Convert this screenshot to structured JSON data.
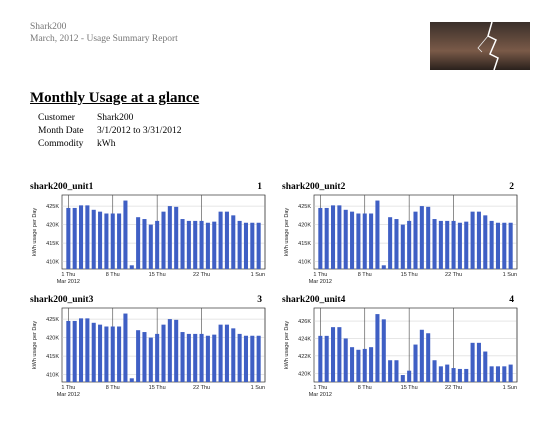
{
  "header": {
    "company": "Shark200",
    "subtitle": "March, 2012 - Usage Summary Report",
    "title": "Monthly Usage at a glance"
  },
  "summary": {
    "rows": [
      {
        "label": "Customer",
        "value": "Shark200"
      },
      {
        "label": "Month Date",
        "value": "3/1/2012 to 3/31/2012"
      },
      {
        "label": "Commodity",
        "value": "kWh"
      }
    ]
  },
  "chart_data": [
    {
      "type": "bar",
      "title": "shark200_unit1",
      "panel": 1,
      "ylabel": "kWh usage per Day",
      "color": "#3f5fc4",
      "grid": true,
      "x": [
        1,
        2,
        3,
        4,
        5,
        6,
        7,
        8,
        9,
        10,
        11,
        12,
        13,
        14,
        15,
        16,
        17,
        18,
        19,
        20,
        21,
        22,
        23,
        24,
        25,
        26,
        27,
        28,
        29,
        30,
        31
      ],
      "values": [
        424500,
        424500,
        425200,
        425200,
        424000,
        423500,
        423000,
        423000,
        423000,
        426500,
        409000,
        422000,
        421500,
        420000,
        421000,
        423500,
        425000,
        424800,
        421500,
        421000,
        421000,
        421000,
        420500,
        420800,
        423500,
        423500,
        422500,
        421000,
        420500,
        420500,
        420500
      ],
      "xlim": [
        0,
        32
      ],
      "xticks": [
        {
          "value": 1,
          "label": "1 Thu"
        },
        {
          "value": 8,
          "label": "8 Thu"
        },
        {
          "value": 15,
          "label": "15 Thu"
        },
        {
          "value": 22,
          "label": "22 Thu"
        },
        {
          "value": 32,
          "label": "1 Sun"
        }
      ],
      "x_sublabel": "Mar 2012",
      "ylim": [
        408000,
        428000
      ],
      "yticks": [
        {
          "value": 410000,
          "label": "410K"
        },
        {
          "value": 415000,
          "label": "415K"
        },
        {
          "value": 420000,
          "label": "420K"
        },
        {
          "value": 425000,
          "label": "425K"
        }
      ]
    },
    {
      "type": "bar",
      "title": "shark200_unit2",
      "panel": 2,
      "ylabel": "kWh usage per Day",
      "color": "#3f5fc4",
      "grid": true,
      "x": [
        1,
        2,
        3,
        4,
        5,
        6,
        7,
        8,
        9,
        10,
        11,
        12,
        13,
        14,
        15,
        16,
        17,
        18,
        19,
        20,
        21,
        22,
        23,
        24,
        25,
        26,
        27,
        28,
        29,
        30,
        31
      ],
      "values": [
        424500,
        424500,
        425200,
        425200,
        424000,
        423500,
        423000,
        423000,
        423000,
        426500,
        409000,
        422000,
        421500,
        420000,
        421000,
        423500,
        425000,
        424800,
        421500,
        421000,
        421000,
        421000,
        420500,
        420800,
        423500,
        423500,
        422500,
        421000,
        420500,
        420500,
        420500
      ],
      "xlim": [
        0,
        32
      ],
      "xticks": [
        {
          "value": 1,
          "label": "1 Thu"
        },
        {
          "value": 8,
          "label": "8 Thu"
        },
        {
          "value": 15,
          "label": "15 Thu"
        },
        {
          "value": 22,
          "label": "22 Thu"
        },
        {
          "value": 32,
          "label": "1 Sun"
        }
      ],
      "x_sublabel": "Mar 2012",
      "ylim": [
        408000,
        428000
      ],
      "yticks": [
        {
          "value": 410000,
          "label": "410K"
        },
        {
          "value": 415000,
          "label": "415K"
        },
        {
          "value": 420000,
          "label": "420K"
        },
        {
          "value": 425000,
          "label": "425K"
        }
      ]
    },
    {
      "type": "bar",
      "title": "shark200_unit3",
      "panel": 3,
      "ylabel": "kWh usage per Day",
      "color": "#3f5fc4",
      "grid": true,
      "x": [
        1,
        2,
        3,
        4,
        5,
        6,
        7,
        8,
        9,
        10,
        11,
        12,
        13,
        14,
        15,
        16,
        17,
        18,
        19,
        20,
        21,
        22,
        23,
        24,
        25,
        26,
        27,
        28,
        29,
        30,
        31
      ],
      "values": [
        424500,
        424500,
        425200,
        425200,
        424000,
        423500,
        423000,
        423000,
        423000,
        426500,
        409000,
        422000,
        421500,
        420000,
        421000,
        423500,
        425000,
        424800,
        421500,
        421000,
        421000,
        421000,
        420500,
        420800,
        423500,
        423500,
        422500,
        421000,
        420500,
        420500,
        420500
      ],
      "xlim": [
        0,
        32
      ],
      "xticks": [
        {
          "value": 1,
          "label": "1 Thu"
        },
        {
          "value": 8,
          "label": "8 Thu"
        },
        {
          "value": 15,
          "label": "15 Thu"
        },
        {
          "value": 22,
          "label": "22 Thu"
        },
        {
          "value": 32,
          "label": "1 Sun"
        }
      ],
      "x_sublabel": "Mar 2012",
      "ylim": [
        408000,
        428000
      ],
      "yticks": [
        {
          "value": 410000,
          "label": "410K"
        },
        {
          "value": 415000,
          "label": "415K"
        },
        {
          "value": 420000,
          "label": "420K"
        },
        {
          "value": 425000,
          "label": "425K"
        }
      ]
    },
    {
      "type": "bar",
      "title": "shark200_unit4",
      "panel": 4,
      "ylabel": "kWh usage per Day",
      "color": "#3f5fc4",
      "grid": true,
      "x": [
        1,
        2,
        3,
        4,
        5,
        6,
        7,
        8,
        9,
        10,
        11,
        12,
        13,
        14,
        15,
        16,
        17,
        18,
        19,
        20,
        21,
        22,
        23,
        24,
        25,
        26,
        27,
        28,
        29,
        30,
        31
      ],
      "values": [
        424300,
        424300,
        425300,
        425300,
        424000,
        423000,
        422700,
        422800,
        423000,
        426800,
        426200,
        421500,
        421500,
        419800,
        420300,
        423300,
        425000,
        424600,
        421500,
        420800,
        421000,
        420600,
        420500,
        420500,
        423500,
        423500,
        422500,
        420800,
        420800,
        420800,
        421000
      ],
      "xlim": [
        0,
        32
      ],
      "xticks": [
        {
          "value": 1,
          "label": "1 Thu"
        },
        {
          "value": 8,
          "label": "8 Thu"
        },
        {
          "value": 15,
          "label": "15 Thu"
        },
        {
          "value": 22,
          "label": "22 Thu"
        },
        {
          "value": 32,
          "label": "1 Sun"
        }
      ],
      "x_sublabel": "Mar 2012",
      "ylim": [
        419000,
        427500
      ],
      "yticks": [
        {
          "value": 420000,
          "label": "420K"
        },
        {
          "value": 422000,
          "label": "422K"
        },
        {
          "value": 424000,
          "label": "424K"
        },
        {
          "value": 426000,
          "label": "426K"
        }
      ]
    }
  ]
}
